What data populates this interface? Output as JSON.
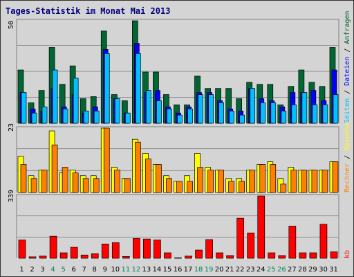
{
  "title": "Tages-Statistik im Monat Mai 2013",
  "panel_max_labels": [
    "50",
    "23",
    "339"
  ],
  "weekend_days": [
    "4",
    "5",
    "11",
    "12",
    "18",
    "19",
    "25",
    "26"
  ],
  "colors": {
    "anfragen": "#006633",
    "dateien": "#0000ff",
    "seiten": "#00c0ff",
    "besuche": "#ffff00",
    "rechner": "#ff8000",
    "kb": "#ff0000",
    "weekday_label": "#000000",
    "weekend_label": "#00805c"
  },
  "right_labels": {
    "anfragen": "Anfragen",
    "dateien": "Dateien",
    "seiten": "Seiten",
    "besuche": "Besuche",
    "rechner": "Rechner",
    "kb": "kb"
  },
  "chart_data": {
    "type": "bar",
    "title": "Tages-Statistik im Monat Mai 2013",
    "categories": [
      "1",
      "2",
      "3",
      "4",
      "5",
      "6",
      "7",
      "8",
      "9",
      "10",
      "11",
      "12",
      "13",
      "14",
      "15",
      "16",
      "17",
      "18",
      "19",
      "20",
      "21",
      "22",
      "23",
      "24",
      "25",
      "26",
      "27",
      "28",
      "29",
      "30",
      "31"
    ],
    "panels": [
      {
        "ymax": 50,
        "series": [
          {
            "name": "Anfragen",
            "values": [
              26,
              10,
              16,
              37,
              19,
              28,
              12,
              13,
              45,
              14,
              11,
              50,
              25,
              25,
              14,
              9,
              9,
              23,
              17,
              17,
              17,
              12,
              20,
              19,
              19,
              9,
              18,
              26,
              20,
              18,
              37
            ]
          },
          {
            "name": "Dateien",
            "values": [
              15,
              7,
              6,
              17,
              8,
              14,
              5,
              8,
              36,
              12,
              5,
              39,
              15,
              16,
              8,
              5,
              8,
              15,
              15,
              11,
              7,
              6,
              17,
              12,
              11,
              8,
              15,
              15,
              16,
              11,
              26
            ]
          },
          {
            "name": "Seiten",
            "values": [
              15,
              5,
              8,
              26,
              7,
              22,
              6,
              6,
              34,
              12,
              5,
              34,
              16,
              11,
              7,
              4,
              7,
              14,
              14,
              10,
              6,
              4,
              17,
              10,
              10,
              6,
              9,
              15,
              9,
              9,
              14
            ]
          }
        ]
      },
      {
        "ymax": 23,
        "series": [
          {
            "name": "Besuche",
            "values": [
              13,
              6,
              8,
              22,
              7,
              8,
              6,
              6,
              23,
              9,
              5,
              19,
              14,
              10,
              6,
              4,
              6,
              14,
              9,
              8,
              5,
              5,
              8,
              10,
              11,
              5,
              9,
              8,
              8,
              8,
              11
            ]
          },
          {
            "name": "Rechner",
            "values": [
              10,
              5,
              8,
              17,
              9,
              7,
              5,
              5,
              23,
              8,
              5,
              18,
              12,
              10,
              5,
              4,
              4,
              9,
              8,
              8,
              4,
              4,
              8,
              10,
              10,
              3,
              8,
              8,
              8,
              8,
              11
            ]
          }
        ]
      },
      {
        "ymax": 339,
        "series": [
          {
            "name": "kb",
            "values": [
              100,
              8,
              12,
              120,
              30,
              60,
              18,
              25,
              78,
              85,
              10,
              108,
              105,
              100,
              30,
              3,
              12,
              45,
              102,
              30,
              15,
              218,
              138,
              339,
              30,
              15,
              175,
              30,
              30,
              185,
              35
            ]
          }
        ]
      }
    ]
  }
}
